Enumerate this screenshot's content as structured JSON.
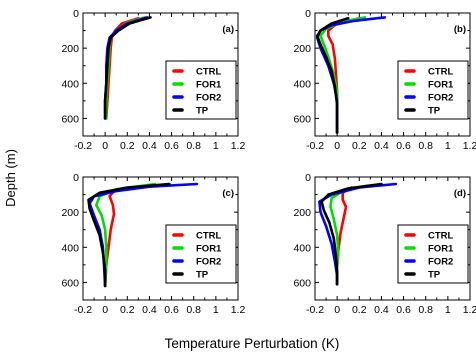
{
  "figure": {
    "ylabel": "Depth (m)",
    "xlabel": "Temperature Perturbation (K)"
  },
  "chart_data": [
    {
      "type": "line",
      "panel_label": "(a)",
      "xlim": [
        -0.2,
        1.2
      ],
      "ylim": [
        700,
        0
      ],
      "x_ticks": [
        "-0.2",
        "0",
        "0.2",
        "0.4",
        "0.6",
        "0.8",
        "1",
        "1.2"
      ],
      "y_ticks": [
        "0",
        "200",
        "400",
        "600"
      ],
      "legend_position": "right",
      "series": [
        {
          "name": "CTRL",
          "color": "#ff0000",
          "points": [
            [
              0.3,
              30
            ],
            [
              0.15,
              60
            ],
            [
              0.09,
              100
            ],
            [
              0.06,
              140
            ],
            [
              0.05,
              200
            ],
            [
              0.04,
              300
            ],
            [
              0.03,
              400
            ],
            [
              0.02,
              500
            ],
            [
              0.01,
              600
            ]
          ]
        },
        {
          "name": "FOR1",
          "color": "#00dd00",
          "points": [
            [
              0.36,
              25
            ],
            [
              0.2,
              55
            ],
            [
              0.1,
              100
            ],
            [
              0.05,
              140
            ],
            [
              0.04,
              200
            ],
            [
              0.03,
              300
            ],
            [
              0.02,
              400
            ],
            [
              0.01,
              500
            ],
            [
              0.01,
              600
            ]
          ]
        },
        {
          "name": "FOR2",
          "color": "#0000ff",
          "points": [
            [
              0.38,
              25
            ],
            [
              0.2,
              60
            ],
            [
              0.1,
              100
            ],
            [
              0.04,
              140
            ],
            [
              0.02,
              200
            ],
            [
              0.01,
              300
            ],
            [
              0.01,
              400
            ],
            [
              0.0,
              500
            ],
            [
              0.0,
              600
            ]
          ]
        },
        {
          "name": "TP",
          "color": "#000000",
          "points": [
            [
              0.41,
              25
            ],
            [
              0.22,
              60
            ],
            [
              0.12,
              100
            ],
            [
              0.05,
              140
            ],
            [
              0.03,
              200
            ],
            [
              0.02,
              300
            ],
            [
              0.01,
              400
            ],
            [
              0.0,
              500
            ],
            [
              0.0,
              600
            ]
          ]
        }
      ]
    },
    {
      "type": "line",
      "panel_label": "(b)",
      "xlim": [
        -0.2,
        1.2
      ],
      "ylim": [
        700,
        0
      ],
      "x_ticks": [
        "-0.2",
        "0",
        "0.2",
        "0.4",
        "0.6",
        "0.8",
        "1",
        "1.2"
      ],
      "y_ticks": [
        "0",
        "200",
        "400",
        "600"
      ],
      "legend_position": "right",
      "series": [
        {
          "name": "CTRL",
          "color": "#ff0000",
          "points": [
            [
              0.2,
              30
            ],
            [
              0.0,
              60
            ],
            [
              -0.08,
              100
            ],
            [
              -0.08,
              130
            ],
            [
              -0.04,
              180
            ],
            [
              -0.02,
              260
            ],
            [
              -0.01,
              350
            ],
            [
              0.0,
              450
            ],
            [
              0.0,
              550
            ],
            [
              0.0,
              680
            ]
          ]
        },
        {
          "name": "FOR1",
          "color": "#00dd00",
          "points": [
            [
              0.25,
              25
            ],
            [
              0.05,
              50
            ],
            [
              -0.1,
              90
            ],
            [
              -0.15,
              130
            ],
            [
              -0.12,
              180
            ],
            [
              -0.08,
              250
            ],
            [
              -0.03,
              350
            ],
            [
              0.0,
              450
            ],
            [
              0.0,
              550
            ],
            [
              0.0,
              680
            ]
          ]
        },
        {
          "name": "FOR2",
          "color": "#0000ff",
          "points": [
            [
              0.43,
              25
            ],
            [
              0.15,
              45
            ],
            [
              -0.05,
              70
            ],
            [
              -0.15,
              100
            ],
            [
              -0.18,
              140
            ],
            [
              -0.15,
              200
            ],
            [
              -0.08,
              300
            ],
            [
              -0.03,
              400
            ],
            [
              0.0,
              500
            ],
            [
              0.0,
              600
            ],
            [
              0.0,
              680
            ]
          ]
        },
        {
          "name": "TP",
          "color": "#000000",
          "points": [
            [
              0.1,
              30
            ],
            [
              -0.05,
              60
            ],
            [
              -0.15,
              100
            ],
            [
              -0.18,
              130
            ],
            [
              -0.15,
              180
            ],
            [
              -0.1,
              250
            ],
            [
              -0.05,
              330
            ],
            [
              -0.02,
              420
            ],
            [
              0.0,
              520
            ],
            [
              0.0,
              620
            ],
            [
              0.0,
              680
            ]
          ]
        }
      ]
    },
    {
      "type": "line",
      "panel_label": "(c)",
      "xlim": [
        -0.2,
        1.2
      ],
      "ylim": [
        700,
        0
      ],
      "x_ticks": [
        "-0.2",
        "0",
        "0.2",
        "0.4",
        "0.6",
        "0.8",
        "1",
        "1.2"
      ],
      "y_ticks": [
        "0",
        "200",
        "400",
        "600"
      ],
      "legend_position": "right",
      "series": [
        {
          "name": "CTRL",
          "color": "#ff0000",
          "points": [
            [
              0.28,
              55
            ],
            [
              0.08,
              80
            ],
            [
              0.04,
              110
            ],
            [
              0.07,
              160
            ],
            [
              0.08,
              210
            ],
            [
              0.05,
              300
            ],
            [
              0.03,
              400
            ],
            [
              0.01,
              500
            ],
            [
              0.0,
              620
            ]
          ]
        },
        {
          "name": "FOR1",
          "color": "#00dd00",
          "points": [
            [
              0.45,
              40
            ],
            [
              0.1,
              70
            ],
            [
              -0.05,
              110
            ],
            [
              -0.08,
              160
            ],
            [
              -0.03,
              220
            ],
            [
              0.0,
              300
            ],
            [
              0.01,
              400
            ],
            [
              0.01,
              500
            ],
            [
              0.0,
              620
            ]
          ]
        },
        {
          "name": "FOR2",
          "color": "#0000ff",
          "points": [
            [
              0.83,
              40
            ],
            [
              0.4,
              55
            ],
            [
              0.1,
              80
            ],
            [
              -0.1,
              110
            ],
            [
              -0.14,
              150
            ],
            [
              -0.1,
              220
            ],
            [
              -0.05,
              300
            ],
            [
              -0.02,
              400
            ],
            [
              -0.01,
              500
            ],
            [
              0.0,
              620
            ]
          ]
        },
        {
          "name": "TP",
          "color": "#000000",
          "points": [
            [
              0.58,
              40
            ],
            [
              0.2,
              60
            ],
            [
              -0.05,
              90
            ],
            [
              -0.15,
              130
            ],
            [
              -0.14,
              180
            ],
            [
              -0.1,
              250
            ],
            [
              -0.05,
              330
            ],
            [
              -0.02,
              430
            ],
            [
              0.0,
              530
            ],
            [
              0.0,
              620
            ]
          ]
        }
      ]
    },
    {
      "type": "line",
      "panel_label": "(d)",
      "xlim": [
        -0.2,
        1.2
      ],
      "ylim": [
        700,
        0
      ],
      "x_ticks": [
        "-0.2",
        "0",
        "0.2",
        "0.4",
        "0.6",
        "0.8",
        "1",
        "1.2"
      ],
      "y_ticks": [
        "0",
        "200",
        "400",
        "600"
      ],
      "legend_position": "right",
      "series": [
        {
          "name": "CTRL",
          "color": "#ff0000",
          "points": [
            [
              0.13,
              60
            ],
            [
              0.05,
              90
            ],
            [
              0.05,
              130
            ],
            [
              0.08,
              170
            ],
            [
              0.06,
              230
            ],
            [
              0.03,
              320
            ],
            [
              0.01,
              420
            ],
            [
              0.0,
              520
            ],
            [
              0.0,
              610
            ]
          ]
        },
        {
          "name": "FOR1",
          "color": "#00dd00",
          "points": [
            [
              0.27,
              50
            ],
            [
              0.05,
              80
            ],
            [
              -0.05,
              120
            ],
            [
              -0.06,
              170
            ],
            [
              -0.03,
              240
            ],
            [
              0.0,
              330
            ],
            [
              0.01,
              430
            ],
            [
              0.0,
              520
            ],
            [
              0.0,
              610
            ]
          ]
        },
        {
          "name": "FOR2",
          "color": "#0000ff",
          "points": [
            [
              0.53,
              40
            ],
            [
              0.2,
              60
            ],
            [
              -0.05,
              100
            ],
            [
              -0.16,
              140
            ],
            [
              -0.15,
              200
            ],
            [
              -0.1,
              280
            ],
            [
              -0.05,
              380
            ],
            [
              -0.02,
              480
            ],
            [
              0.0,
              560
            ],
            [
              0.0,
              610
            ]
          ]
        },
        {
          "name": "TP",
          "color": "#000000",
          "points": [
            [
              0.4,
              40
            ],
            [
              0.1,
              65
            ],
            [
              -0.08,
              100
            ],
            [
              -0.14,
              140
            ],
            [
              -0.12,
              190
            ],
            [
              -0.07,
              260
            ],
            [
              -0.03,
              350
            ],
            [
              -0.01,
              450
            ],
            [
              0.0,
              540
            ],
            [
              0.0,
              610
            ]
          ]
        }
      ]
    }
  ]
}
